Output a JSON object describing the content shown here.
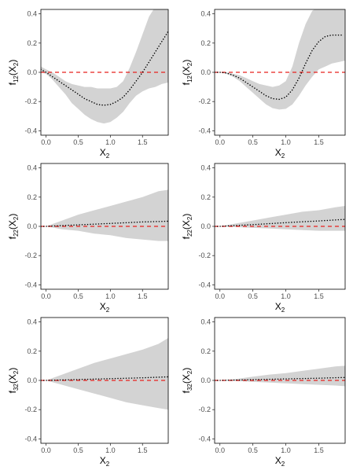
{
  "chart_data": [
    {
      "type": "line",
      "ylabel": {
        "base": "f",
        "sub": "12",
        "arg": "X",
        "argsub": "2"
      },
      "xlabel": {
        "base": "X",
        "sub": "2"
      },
      "xlim": [
        -0.08,
        1.9
      ],
      "ylim": [
        -0.43,
        0.43
      ],
      "xticks": [
        0.0,
        0.5,
        1.0,
        1.5
      ],
      "xtick_labels": [
        "0.0",
        "0.5",
        "1.0",
        "1.5"
      ],
      "yticks": [
        -0.4,
        -0.2,
        0.0,
        0.2,
        0.4
      ],
      "ytick_labels": [
        "-0.4",
        "-0.2",
        "0.0",
        "0.2",
        "0.4"
      ],
      "reference_line": {
        "y": 0,
        "color": "#e8211f",
        "style": "dashed"
      },
      "band_color": "#d3d3d3",
      "estimate_color": "#000000",
      "band": {
        "x": [
          -0.08,
          0.0,
          0.1,
          0.2,
          0.3,
          0.4,
          0.5,
          0.6,
          0.7,
          0.8,
          0.9,
          1.0,
          1.1,
          1.2,
          1.3,
          1.4,
          1.5,
          1.6,
          1.7,
          1.8,
          1.9
        ],
        "lower": [
          0.0,
          -0.01,
          -0.05,
          -0.1,
          -0.15,
          -0.21,
          -0.25,
          -0.29,
          -0.32,
          -0.34,
          -0.35,
          -0.34,
          -0.31,
          -0.27,
          -0.21,
          -0.16,
          -0.13,
          -0.11,
          -0.1,
          -0.08,
          -0.07
        ],
        "upper": [
          0.04,
          0.02,
          0.0,
          -0.03,
          -0.06,
          -0.08,
          -0.09,
          -0.1,
          -0.1,
          -0.11,
          -0.11,
          -0.11,
          -0.1,
          -0.06,
          0.03,
          0.14,
          0.26,
          0.38,
          0.45,
          0.45,
          0.45
        ]
      },
      "estimate": {
        "x": [
          -0.08,
          0.0,
          0.1,
          0.2,
          0.3,
          0.4,
          0.5,
          0.6,
          0.7,
          0.8,
          0.9,
          1.0,
          1.1,
          1.2,
          1.3,
          1.4,
          1.5,
          1.6,
          1.7,
          1.8,
          1.9
        ],
        "y": [
          0.02,
          0.0,
          -0.03,
          -0.06,
          -0.09,
          -0.12,
          -0.15,
          -0.18,
          -0.2,
          -0.22,
          -0.225,
          -0.22,
          -0.2,
          -0.17,
          -0.12,
          -0.06,
          0.0,
          0.07,
          0.14,
          0.21,
          0.28
        ]
      }
    },
    {
      "type": "line",
      "ylabel": {
        "base": "f",
        "sub": "12",
        "arg": "X",
        "argsub": "2"
      },
      "xlabel": {
        "base": "X",
        "sub": "2"
      },
      "xlim": [
        -0.08,
        1.9
      ],
      "ylim": [
        -0.43,
        0.43
      ],
      "xticks": [
        0.0,
        0.5,
        1.0,
        1.5
      ],
      "xtick_labels": [
        "0.0",
        "0.5",
        "1.0",
        "1.5"
      ],
      "yticks": [
        -0.4,
        -0.2,
        0.0,
        0.2,
        0.4
      ],
      "ytick_labels": [
        "-0.4",
        "-0.2",
        "0.0",
        "0.2",
        "0.4"
      ],
      "reference_line": {
        "y": 0,
        "color": "#e8211f",
        "style": "dashed"
      },
      "band_color": "#d3d3d3",
      "estimate_color": "#000000",
      "band": {
        "x": [
          -0.08,
          0.0,
          0.1,
          0.2,
          0.3,
          0.4,
          0.5,
          0.6,
          0.7,
          0.8,
          0.9,
          1.0,
          1.1,
          1.2,
          1.3,
          1.4,
          1.5,
          1.6,
          1.7,
          1.8,
          1.9
        ],
        "lower": [
          0.0,
          0.0,
          -0.01,
          -0.03,
          -0.06,
          -0.1,
          -0.14,
          -0.18,
          -0.22,
          -0.245,
          -0.255,
          -0.25,
          -0.22,
          -0.16,
          -0.09,
          -0.03,
          0.02,
          0.04,
          0.06,
          0.07,
          0.08
        ],
        "upper": [
          0.0,
          0.0,
          0.0,
          -0.01,
          -0.02,
          -0.04,
          -0.06,
          -0.08,
          -0.09,
          -0.1,
          -0.09,
          -0.06,
          0.04,
          0.2,
          0.33,
          0.42,
          0.45,
          0.45,
          0.45,
          0.45,
          0.45
        ]
      },
      "estimate": {
        "x": [
          -0.08,
          0.0,
          0.1,
          0.2,
          0.3,
          0.4,
          0.5,
          0.6,
          0.7,
          0.8,
          0.9,
          1.0,
          1.1,
          1.2,
          1.3,
          1.4,
          1.5,
          1.6,
          1.7,
          1.8,
          1.85
        ],
        "y": [
          0.0,
          0.0,
          -0.005,
          -0.02,
          -0.04,
          -0.07,
          -0.1,
          -0.13,
          -0.16,
          -0.18,
          -0.185,
          -0.17,
          -0.12,
          -0.04,
          0.06,
          0.15,
          0.21,
          0.245,
          0.255,
          0.255,
          0.255
        ]
      }
    },
    {
      "type": "line",
      "ylabel": {
        "base": "f",
        "sub": "22",
        "arg": "X",
        "argsub": "2"
      },
      "xlabel": {
        "base": "X",
        "sub": "2"
      },
      "xlim": [
        -0.08,
        1.9
      ],
      "ylim": [
        -0.43,
        0.43
      ],
      "xticks": [
        0.0,
        0.5,
        1.0,
        1.5
      ],
      "xtick_labels": [
        "0.0",
        "0.5",
        "1.0",
        "1.5"
      ],
      "yticks": [
        -0.4,
        -0.2,
        0.0,
        0.2,
        0.4
      ],
      "ytick_labels": [
        "-0.4",
        "-0.2",
        "0.0",
        "0.2",
        "0.4"
      ],
      "reference_line": {
        "y": 0,
        "color": "#e8211f",
        "style": "dashed"
      },
      "band_color": "#d3d3d3",
      "estimate_color": "#000000",
      "band": {
        "x": [
          -0.08,
          0.0,
          0.25,
          0.5,
          0.75,
          1.0,
          1.25,
          1.5,
          1.75,
          1.9
        ],
        "lower": [
          0.0,
          0.0,
          -0.02,
          -0.03,
          -0.05,
          -0.06,
          -0.08,
          -0.09,
          -0.1,
          -0.1
        ],
        "upper": [
          0.0,
          0.0,
          0.04,
          0.08,
          0.11,
          0.14,
          0.17,
          0.2,
          0.24,
          0.25
        ]
      },
      "estimate": {
        "x": [
          -0.08,
          0.0,
          0.5,
          1.0,
          1.5,
          1.9
        ],
        "y": [
          0.0,
          0.0,
          0.01,
          0.02,
          0.03,
          0.035
        ]
      }
    },
    {
      "type": "line",
      "ylabel": {
        "base": "f",
        "sub": "22",
        "arg": "X",
        "argsub": "2"
      },
      "xlabel": {
        "base": "X",
        "sub": "2"
      },
      "xlim": [
        -0.08,
        1.9
      ],
      "ylim": [
        -0.43,
        0.43
      ],
      "xticks": [
        0.0,
        0.5,
        1.0,
        1.5
      ],
      "xtick_labels": [
        "0.0",
        "0.5",
        "1.0",
        "1.5"
      ],
      "yticks": [
        -0.4,
        -0.2,
        0.0,
        0.2,
        0.4
      ],
      "ytick_labels": [
        "-0.4",
        "-0.2",
        "0.0",
        "0.2",
        "0.4"
      ],
      "reference_line": {
        "y": 0,
        "color": "#e8211f",
        "style": "dashed"
      },
      "band_color": "#d3d3d3",
      "estimate_color": "#000000",
      "band": {
        "x": [
          -0.08,
          0.0,
          0.25,
          0.5,
          0.75,
          1.0,
          1.25,
          1.5,
          1.75,
          1.9
        ],
        "lower": [
          0.0,
          0.0,
          -0.005,
          -0.01,
          -0.015,
          -0.02,
          -0.025,
          -0.03,
          -0.03,
          -0.03
        ],
        "upper": [
          0.0,
          0.0,
          0.02,
          0.04,
          0.06,
          0.08,
          0.1,
          0.11,
          0.13,
          0.14
        ]
      },
      "estimate": {
        "x": [
          -0.08,
          0.0,
          0.5,
          1.0,
          1.5,
          1.9
        ],
        "y": [
          0.0,
          0.0,
          0.012,
          0.025,
          0.037,
          0.048
        ]
      }
    },
    {
      "type": "line",
      "ylabel": {
        "base": "f",
        "sub": "32",
        "arg": "X",
        "argsub": "2"
      },
      "xlabel": {
        "base": "X",
        "sub": "2"
      },
      "xlim": [
        -0.08,
        1.9
      ],
      "ylim": [
        -0.43,
        0.43
      ],
      "xticks": [
        0.0,
        0.5,
        1.0,
        1.5
      ],
      "xtick_labels": [
        "0.0",
        "0.5",
        "1.0",
        "1.5"
      ],
      "yticks": [
        -0.4,
        -0.2,
        0.0,
        0.2,
        0.4
      ],
      "ytick_labels": [
        "-0.4",
        "-0.2",
        "0.0",
        "0.2",
        "0.4"
      ],
      "reference_line": {
        "y": 0,
        "color": "#e8211f",
        "style": "dashed"
      },
      "band_color": "#d3d3d3",
      "estimate_color": "#000000",
      "band": {
        "x": [
          -0.08,
          0.0,
          0.25,
          0.5,
          0.75,
          1.0,
          1.25,
          1.5,
          1.75,
          1.9
        ],
        "lower": [
          0.0,
          0.0,
          -0.03,
          -0.06,
          -0.09,
          -0.12,
          -0.15,
          -0.17,
          -0.19,
          -0.2
        ],
        "upper": [
          0.0,
          0.0,
          0.04,
          0.08,
          0.12,
          0.15,
          0.18,
          0.21,
          0.25,
          0.29
        ]
      },
      "estimate": {
        "x": [
          -0.08,
          0.0,
          0.5,
          1.0,
          1.5,
          1.9
        ],
        "y": [
          0.0,
          0.0,
          0.006,
          0.012,
          0.018,
          0.024
        ]
      }
    },
    {
      "type": "line",
      "ylabel": {
        "base": "f",
        "sub": "32",
        "arg": "X",
        "argsub": "2"
      },
      "xlabel": {
        "base": "X",
        "sub": "2"
      },
      "xlim": [
        -0.08,
        1.9
      ],
      "ylim": [
        -0.43,
        0.43
      ],
      "xticks": [
        0.0,
        0.5,
        1.0,
        1.5
      ],
      "xtick_labels": [
        "0.0",
        "0.5",
        "1.0",
        "1.5"
      ],
      "yticks": [
        -0.4,
        -0.2,
        0.0,
        0.2,
        0.4
      ],
      "ytick_labels": [
        "-0.4",
        "-0.2",
        "0.0",
        "0.2",
        "0.4"
      ],
      "reference_line": {
        "y": 0,
        "color": "#e8211f",
        "style": "dashed"
      },
      "band_color": "#d3d3d3",
      "estimate_color": "#000000",
      "band": {
        "x": [
          -0.08,
          0.0,
          0.25,
          0.5,
          0.75,
          1.0,
          1.25,
          1.5,
          1.75,
          1.9
        ],
        "lower": [
          0.0,
          0.0,
          -0.005,
          -0.01,
          -0.015,
          -0.02,
          -0.025,
          -0.03,
          -0.035,
          -0.04
        ],
        "upper": [
          0.0,
          0.0,
          0.01,
          0.025,
          0.04,
          0.05,
          0.065,
          0.08,
          0.095,
          0.1
        ]
      },
      "estimate": {
        "x": [
          -0.08,
          0.0,
          0.5,
          1.0,
          1.5,
          1.9
        ],
        "y": [
          0.0,
          0.0,
          0.005,
          0.01,
          0.015,
          0.02
        ]
      }
    }
  ]
}
